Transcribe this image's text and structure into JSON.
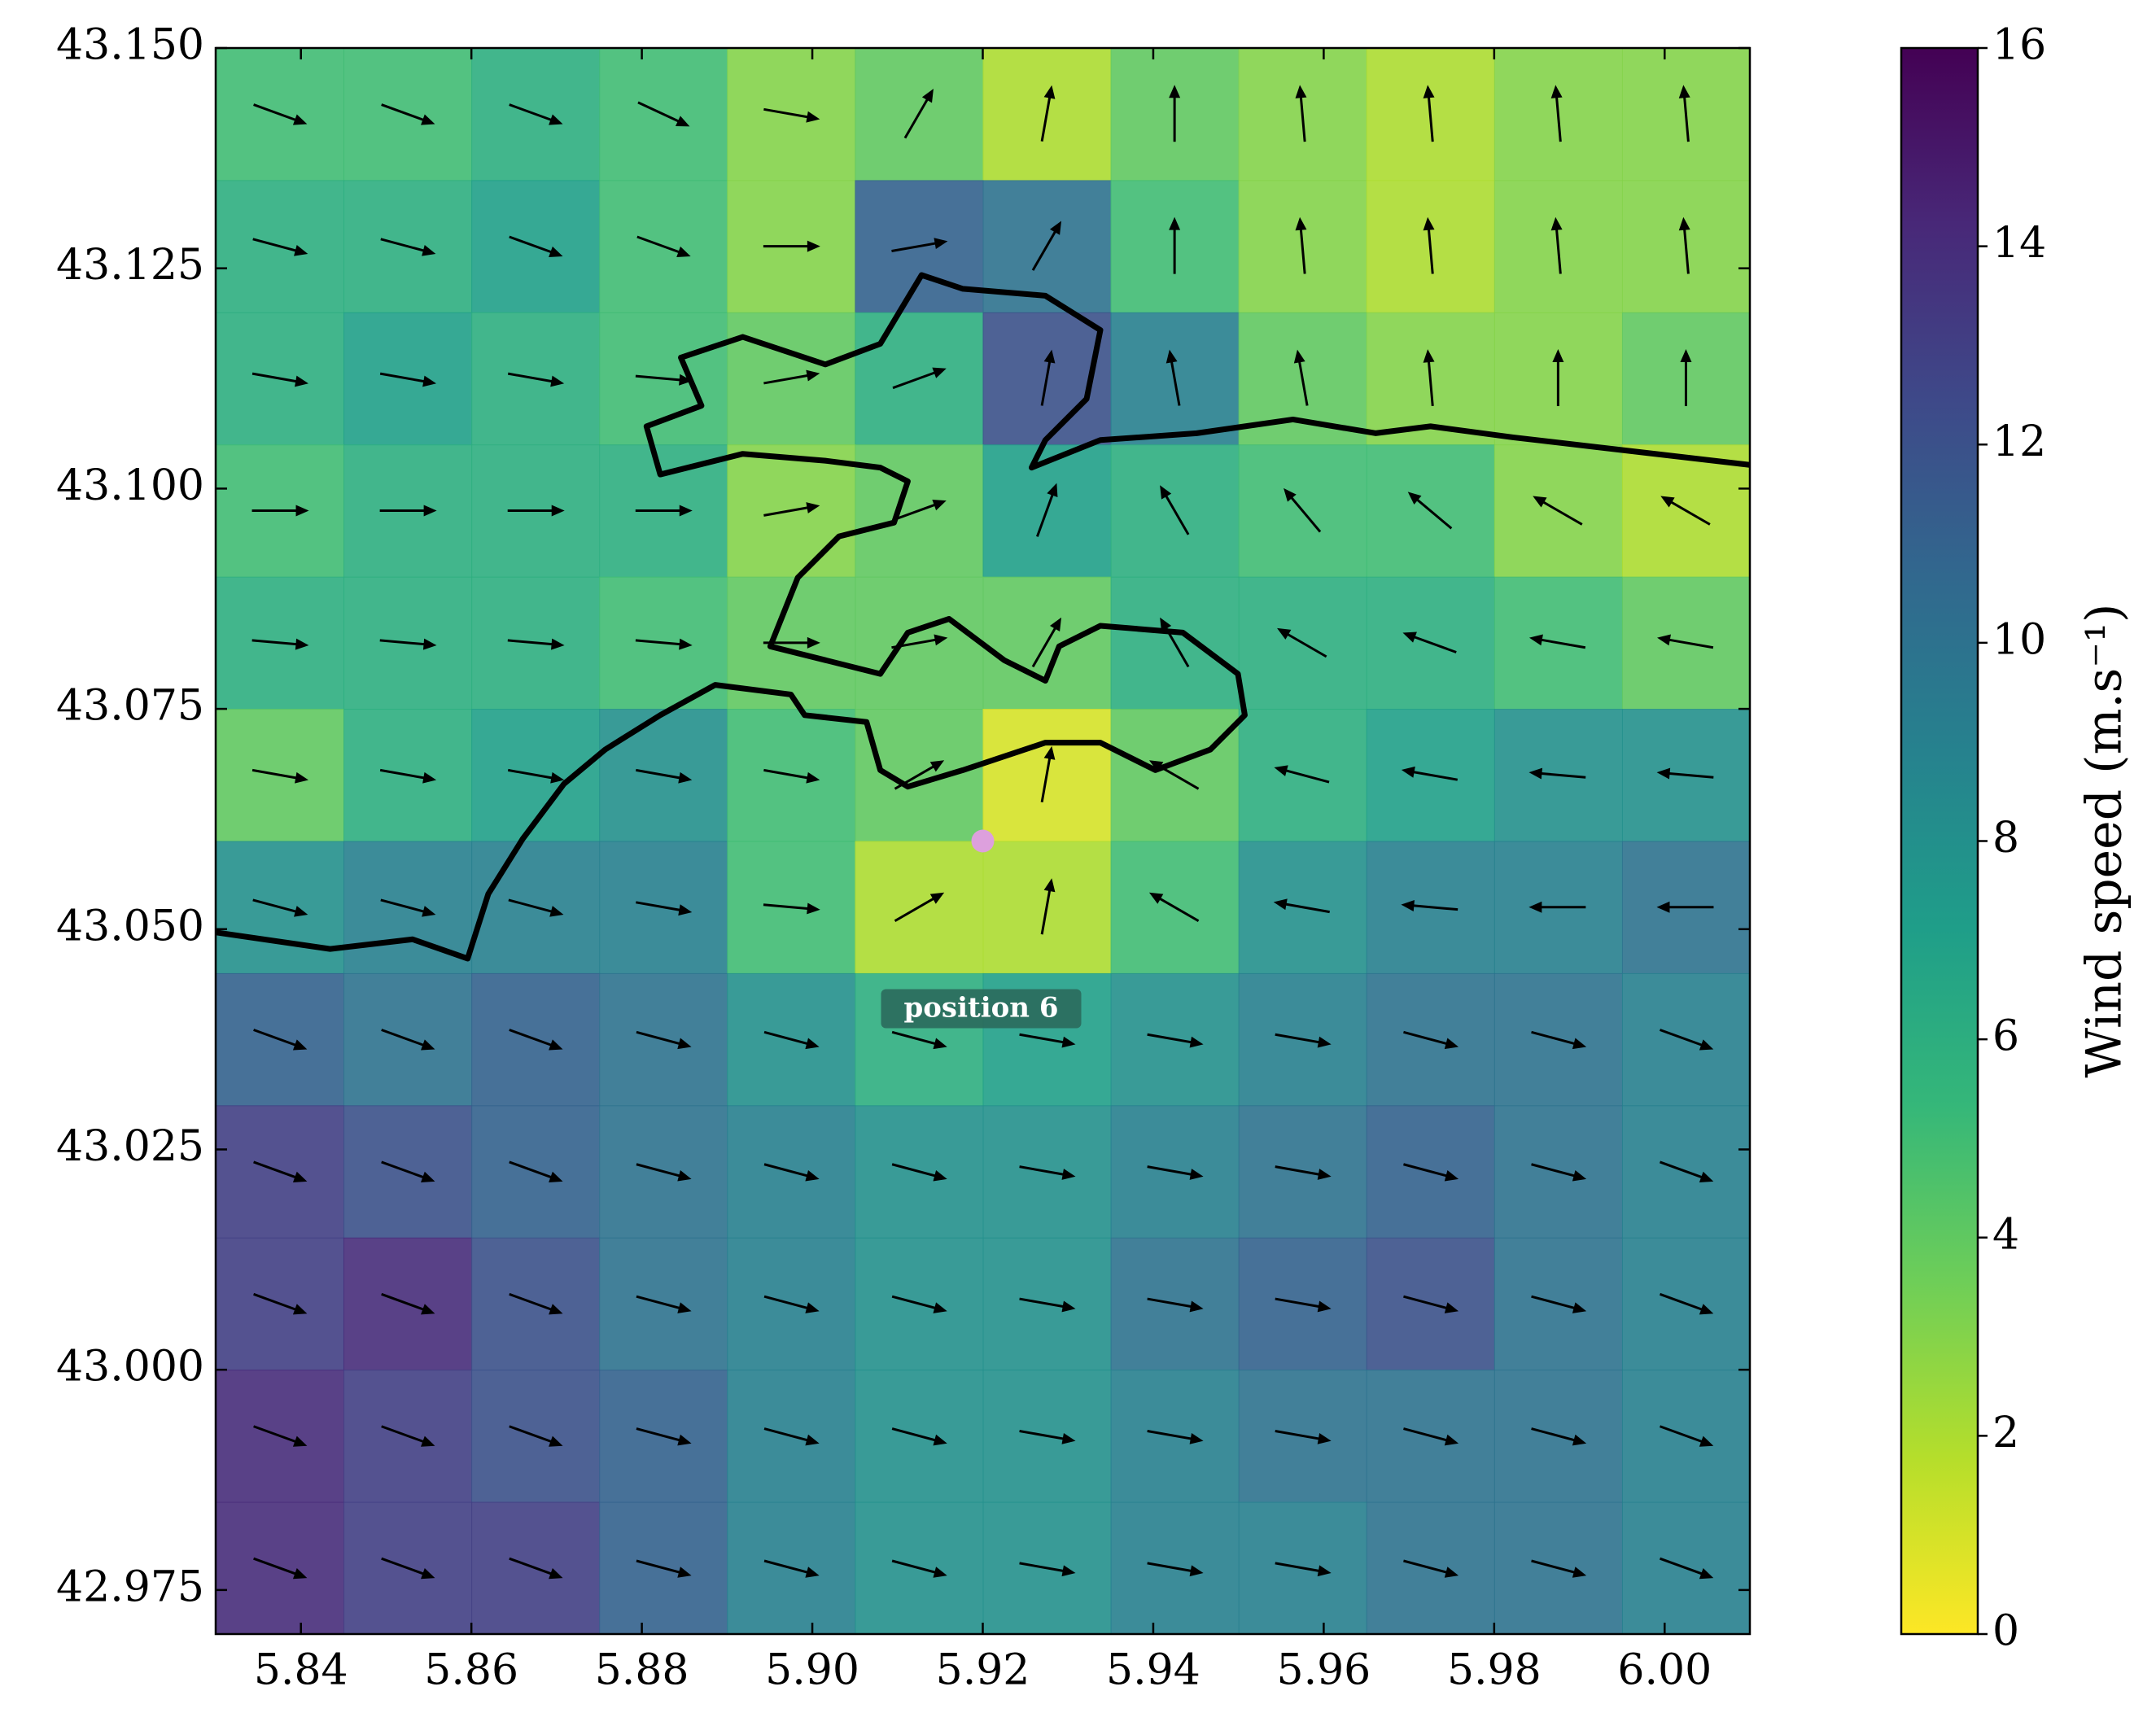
{
  "chart_data": {
    "type": "quiver",
    "x": [
      5.8375,
      5.8525,
      5.8675,
      5.8825,
      5.8975,
      5.9125,
      5.9275,
      5.9425,
      5.9575,
      5.9725,
      5.9875,
      6.0025
    ],
    "y": [
      43.1425,
      43.1275,
      43.1125,
      43.0975,
      43.0825,
      43.0675,
      43.0525,
      43.0375,
      43.0225,
      43.0075,
      42.9925,
      42.9775
    ],
    "speed": [
      [
        5,
        5,
        6,
        5,
        3,
        4,
        2,
        4,
        3,
        2,
        3,
        3
      ],
      [
        6,
        6,
        7,
        5,
        3,
        11,
        10,
        5,
        3,
        2,
        3,
        3
      ],
      [
        6,
        7,
        6,
        5,
        4,
        6,
        12,
        9,
        4,
        3,
        3,
        4
      ],
      [
        5,
        6,
        6,
        6,
        3,
        4,
        7,
        6,
        5,
        5,
        3,
        2
      ],
      [
        6,
        6,
        6,
        5,
        4,
        4,
        4,
        6,
        6,
        6,
        5,
        4
      ],
      [
        4,
        6,
        7,
        8,
        5,
        4,
        1,
        4,
        6,
        7,
        8,
        8
      ],
      [
        8,
        9,
        9,
        9,
        5,
        2,
        2,
        5,
        8,
        9,
        9,
        10
      ],
      [
        11,
        10,
        11,
        10,
        8,
        6,
        7,
        8,
        9,
        10,
        10,
        9
      ],
      [
        13,
        12,
        11,
        10,
        9,
        8,
        8,
        9,
        10,
        11,
        10,
        9
      ],
      [
        13,
        14,
        12,
        10,
        9,
        8,
        8,
        10,
        11,
        12,
        10,
        9
      ],
      [
        14,
        13,
        12,
        11,
        9,
        8,
        8,
        9,
        10,
        10,
        10,
        9
      ],
      [
        14,
        13,
        13,
        11,
        9,
        8,
        8,
        9,
        9,
        10,
        10,
        9
      ]
    ],
    "direction": [
      [
        -20,
        -20,
        -20,
        -25,
        -10,
        60,
        80,
        90,
        95,
        95,
        95,
        95
      ],
      [
        -15,
        -15,
        -20,
        -20,
        0,
        10,
        60,
        90,
        95,
        95,
        95,
        95
      ],
      [
        -10,
        -10,
        -10,
        -5,
        10,
        20,
        80,
        100,
        100,
        95,
        90,
        90
      ],
      [
        0,
        0,
        0,
        0,
        10,
        20,
        70,
        120,
        130,
        140,
        150,
        150
      ],
      [
        -5,
        -5,
        -5,
        -5,
        0,
        10,
        60,
        120,
        150,
        160,
        170,
        170
      ],
      [
        -10,
        -10,
        -10,
        -10,
        -10,
        30,
        80,
        150,
        165,
        170,
        175,
        175
      ],
      [
        -15,
        -15,
        -15,
        -10,
        -5,
        30,
        80,
        150,
        170,
        175,
        180,
        180
      ],
      [
        -20,
        -20,
        -20,
        -15,
        -15,
        -15,
        -10,
        -10,
        -10,
        -15,
        -15,
        -20
      ],
      [
        -20,
        -20,
        -20,
        -15,
        -15,
        -15,
        -10,
        -10,
        -10,
        -15,
        -15,
        -20
      ],
      [
        -20,
        -20,
        -20,
        -15,
        -15,
        -15,
        -10,
        -10,
        -10,
        -15,
        -15,
        -20
      ],
      [
        -20,
        -20,
        -20,
        -15,
        -15,
        -15,
        -10,
        -10,
        -10,
        -15,
        -15,
        -20
      ],
      [
        -20,
        -20,
        -20,
        -15,
        -15,
        -15,
        -10,
        -10,
        -10,
        -15,
        -15,
        -20
      ]
    ],
    "xlim": [
      5.83,
      6.01
    ],
    "ylim": [
      42.97,
      43.15
    ],
    "xticks": [
      5.84,
      5.86,
      5.88,
      {
        "value": 5.9,
        "label": "5.90"
      },
      5.92,
      5.94,
      5.96,
      5.98,
      {
        "value": 6,
        "label": "6.00"
      }
    ],
    "yticks": [
      {
        "value": 42.975,
        "label": "42.975"
      },
      {
        "value": 43,
        "label": "43.000"
      },
      {
        "value": 43.025,
        "label": "43.025"
      },
      {
        "value": 43.05,
        "label": "43.050"
      },
      {
        "value": 43.075,
        "label": "43.075"
      },
      {
        "value": 43.1,
        "label": "43.100"
      },
      {
        "value": 43.125,
        "label": "43.125"
      },
      {
        "value": 43.15,
        "label": "43.150"
      }
    ],
    "colorbar": {
      "label": "Wind speed (m.s⁻¹)",
      "lim": [
        0,
        16
      ],
      "ticks": [
        0,
        2,
        4,
        6,
        8,
        10,
        12,
        14,
        16
      ],
      "colormap": [
        "#fde725",
        "#b5de2b",
        "#6ece58",
        "#35b779",
        "#1f9e89",
        "#26828e",
        "#31688e",
        "#3e4989",
        "#482878",
        "#440154"
      ]
    },
    "marker": {
      "lon": 5.92,
      "lat": 43.06,
      "color": "#dda0dd",
      "label": "position 6"
    }
  }
}
